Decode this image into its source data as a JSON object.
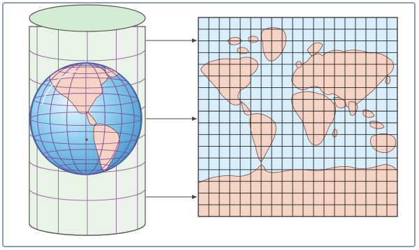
{
  "diagram": {
    "type": "cylindrical-map-projection",
    "elements": [
      "globe",
      "projection-cylinder",
      "projection-arrows",
      "flat-map-grid"
    ],
    "arrow_count": 3,
    "colors": {
      "frame": "#8a9bbd",
      "cylinder_fill": "#e8f4e6",
      "cylinder_top": "#d5ecd4",
      "cylinder_outline": "#555555",
      "cylinder_grid": "#a06aa8",
      "globe_ocean": "#8fd0ee",
      "globe_ocean_deep": "#3f92c9",
      "globe_grid": "#7c3f9c",
      "land": "#f6d3c4",
      "land_outline": "#6e4a40",
      "map_ocean": "#d8eefa",
      "map_grid": "#222222",
      "arrow": "#444444"
    }
  }
}
